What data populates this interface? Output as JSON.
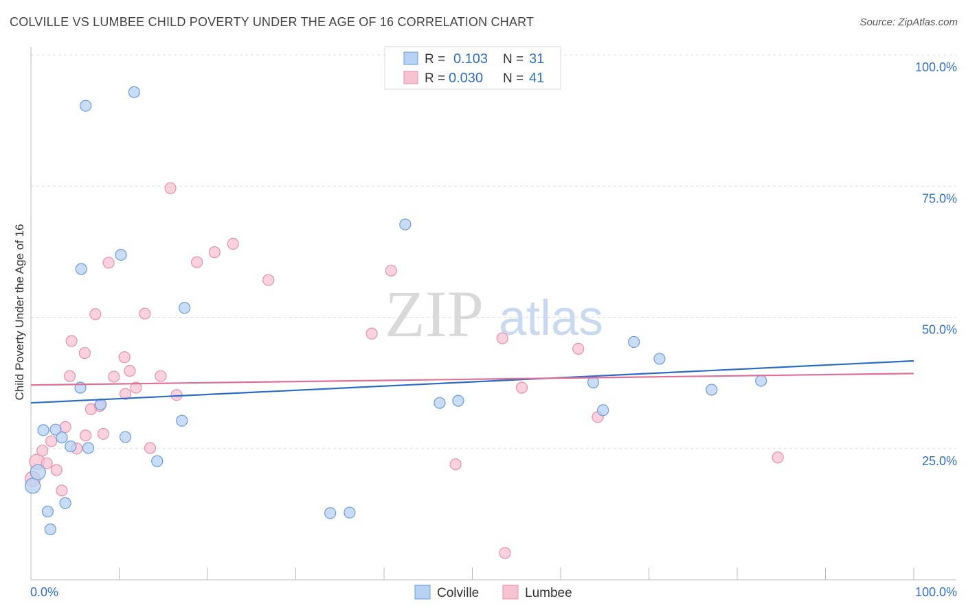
{
  "title": "COLVILLE VS LUMBEE CHILD POVERTY UNDER THE AGE OF 16 CORRELATION CHART",
  "source": "Source: ZipAtlas.com",
  "watermark": {
    "zip": "ZIP",
    "atlas": "atlas"
  },
  "colors": {
    "colville_fill": "#b8d2f3",
    "colville_stroke": "#6c9bd8",
    "colville_line": "#2a6cc9",
    "lumbee_fill": "#f7c3d3",
    "lumbee_stroke": "#e690ad",
    "lumbee_line": "#e06e97",
    "value_text": "#2f6fc6",
    "grid": "#dcdcdc"
  },
  "legend_box": {
    "colville": {
      "r_label": "R =",
      "r_value": "0.103",
      "n_label": "N =",
      "n_value": "31"
    },
    "lumbee": {
      "r_label": "R =",
      "r_value": "0.030",
      "n_label": "N =",
      "n_value": "41"
    }
  },
  "chart_data": {
    "type": "scatter",
    "title": "COLVILLE VS LUMBEE CHILD POVERTY UNDER THE AGE OF 16 CORRELATION CHART",
    "xlabel": "",
    "ylabel": "Child Poverty Under the Age of 16",
    "xlim": [
      0,
      100
    ],
    "ylim": [
      0,
      100
    ],
    "x_tick_labels": [
      "0.0%",
      "100.0%"
    ],
    "y_ticks": [
      25,
      50,
      75,
      100
    ],
    "y_tick_labels": [
      "25.0%",
      "50.0%",
      "75.0%",
      "100.0%"
    ],
    "grid": true,
    "legend": [
      "Colville",
      "Lumbee"
    ],
    "series": [
      {
        "name": "Colville",
        "r": 0.103,
        "n": 31,
        "trend": [
          [
            0,
            33.7
          ],
          [
            100,
            41.7
          ]
        ],
        "points": [
          [
            0.2,
            17.9
          ],
          [
            0.8,
            20.5
          ],
          [
            1.4,
            28.5
          ],
          [
            1.9,
            13.0
          ],
          [
            2.2,
            9.6
          ],
          [
            2.8,
            28.6
          ],
          [
            3.5,
            27.1
          ],
          [
            3.9,
            14.6
          ],
          [
            4.5,
            25.4
          ],
          [
            5.6,
            36.6
          ],
          [
            5.7,
            59.2
          ],
          [
            6.2,
            90.3
          ],
          [
            6.5,
            25.1
          ],
          [
            7.9,
            33.4
          ],
          [
            10.2,
            61.9
          ],
          [
            10.7,
            27.2
          ],
          [
            11.7,
            92.9
          ],
          [
            14.3,
            22.6
          ],
          [
            17.1,
            30.3
          ],
          [
            17.4,
            51.8
          ],
          [
            33.9,
            12.7
          ],
          [
            36.1,
            12.8
          ],
          [
            42.4,
            67.7
          ],
          [
            46.3,
            33.7
          ],
          [
            48.4,
            34.1
          ],
          [
            63.7,
            37.6
          ],
          [
            64.8,
            32.3
          ],
          [
            68.3,
            45.3
          ],
          [
            71.2,
            42.1
          ],
          [
            77.1,
            36.2
          ],
          [
            82.7,
            37.9
          ]
        ]
      },
      {
        "name": "Lumbee",
        "r": 0.03,
        "n": 41,
        "trend": [
          [
            0,
            37.1
          ],
          [
            100,
            39.3
          ]
        ],
        "points": [
          [
            0.2,
            19.2
          ],
          [
            0.7,
            22.5
          ],
          [
            1.3,
            24.6
          ],
          [
            1.8,
            22.2
          ],
          [
            2.3,
            26.4
          ],
          [
            2.9,
            20.9
          ],
          [
            3.5,
            17.0
          ],
          [
            3.9,
            29.1
          ],
          [
            4.4,
            38.8
          ],
          [
            4.6,
            45.5
          ],
          [
            5.2,
            25.0
          ],
          [
            6.1,
            43.2
          ],
          [
            6.2,
            27.5
          ],
          [
            6.8,
            32.5
          ],
          [
            7.3,
            50.6
          ],
          [
            7.8,
            33.1
          ],
          [
            8.2,
            27.8
          ],
          [
            8.8,
            60.4
          ],
          [
            9.4,
            38.7
          ],
          [
            10.6,
            42.4
          ],
          [
            10.7,
            35.4
          ],
          [
            11.2,
            39.8
          ],
          [
            11.9,
            36.6
          ],
          [
            12.9,
            50.7
          ],
          [
            13.5,
            25.1
          ],
          [
            14.7,
            38.8
          ],
          [
            15.8,
            74.6
          ],
          [
            16.5,
            35.2
          ],
          [
            18.8,
            60.5
          ],
          [
            20.8,
            62.4
          ],
          [
            22.9,
            64.0
          ],
          [
            26.9,
            57.1
          ],
          [
            38.6,
            46.9
          ],
          [
            40.8,
            58.9
          ],
          [
            48.1,
            22.0
          ],
          [
            53.4,
            46.0
          ],
          [
            53.7,
            5.1
          ],
          [
            55.6,
            36.6
          ],
          [
            62.0,
            44.0
          ],
          [
            64.2,
            31.0
          ],
          [
            84.6,
            23.3
          ]
        ]
      }
    ]
  }
}
